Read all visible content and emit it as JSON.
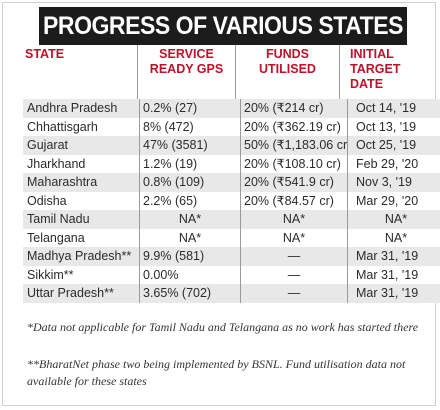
{
  "title": "PROGRESS OF VARIOUS STATES",
  "columns": {
    "state": "STATE",
    "service_ready": [
      "SERVICE",
      "READY GPs"
    ],
    "funds_utilised": [
      "FUNDS",
      "UTILISED"
    ],
    "initial_target": [
      "INITIAL",
      "TARGET",
      "DATE"
    ]
  },
  "rows": [
    {
      "state": "Andhra Pradesh",
      "service_ready": "0.2% (27)",
      "funds": "20% (₹214 cr)",
      "target": "Oct 14, '19"
    },
    {
      "state": "Chhattisgarh",
      "service_ready": "8% (472)",
      "funds": "20% (₹362.19 cr)",
      "target": "Oct 13, '19"
    },
    {
      "state": "Gujarat",
      "service_ready": "47% (3581)",
      "funds": "50% (₹1,183.06 cr)",
      "target": "Oct 25, '19"
    },
    {
      "state": "Jharkhand",
      "service_ready": "1.2% (19)",
      "funds": "20% (₹108.10 cr)",
      "target": "Feb 29, '20"
    },
    {
      "state": "Maharashtra",
      "service_ready": "0.8% (109)",
      "funds": "20% (₹541.9 cr)",
      "target": "Nov 3, '19"
    },
    {
      "state": "Odisha",
      "service_ready": "2.2% (65)",
      "funds": "20% (₹84.57 cr)",
      "target": "Mar 29, '20"
    },
    {
      "state": "Tamil Nadu",
      "service_ready": "NA*",
      "funds": "NA*",
      "target": "NA*"
    },
    {
      "state": "Telangana",
      "service_ready": "NA*",
      "funds": "NA*",
      "target": "NA*"
    },
    {
      "state": "Madhya Pradesh**",
      "service_ready": "9.9% (581)",
      "funds": "—",
      "target": "Mar 31, '19"
    },
    {
      "state": "Sikkim**",
      "service_ready": "0.00%",
      "funds": "—",
      "target": "Mar 31, '19"
    },
    {
      "state": "Uttar Pradesh**",
      "service_ready": "3.65% (702)",
      "funds": "—",
      "target": "Mar 31, '19"
    }
  ],
  "footnotes": [
    "*Data not applicable for Tamil Nadu and Telangana as no work has started there",
    "**BharatNet phase two being implemented by BSNL. Fund utilisation data not available for these states"
  ]
}
